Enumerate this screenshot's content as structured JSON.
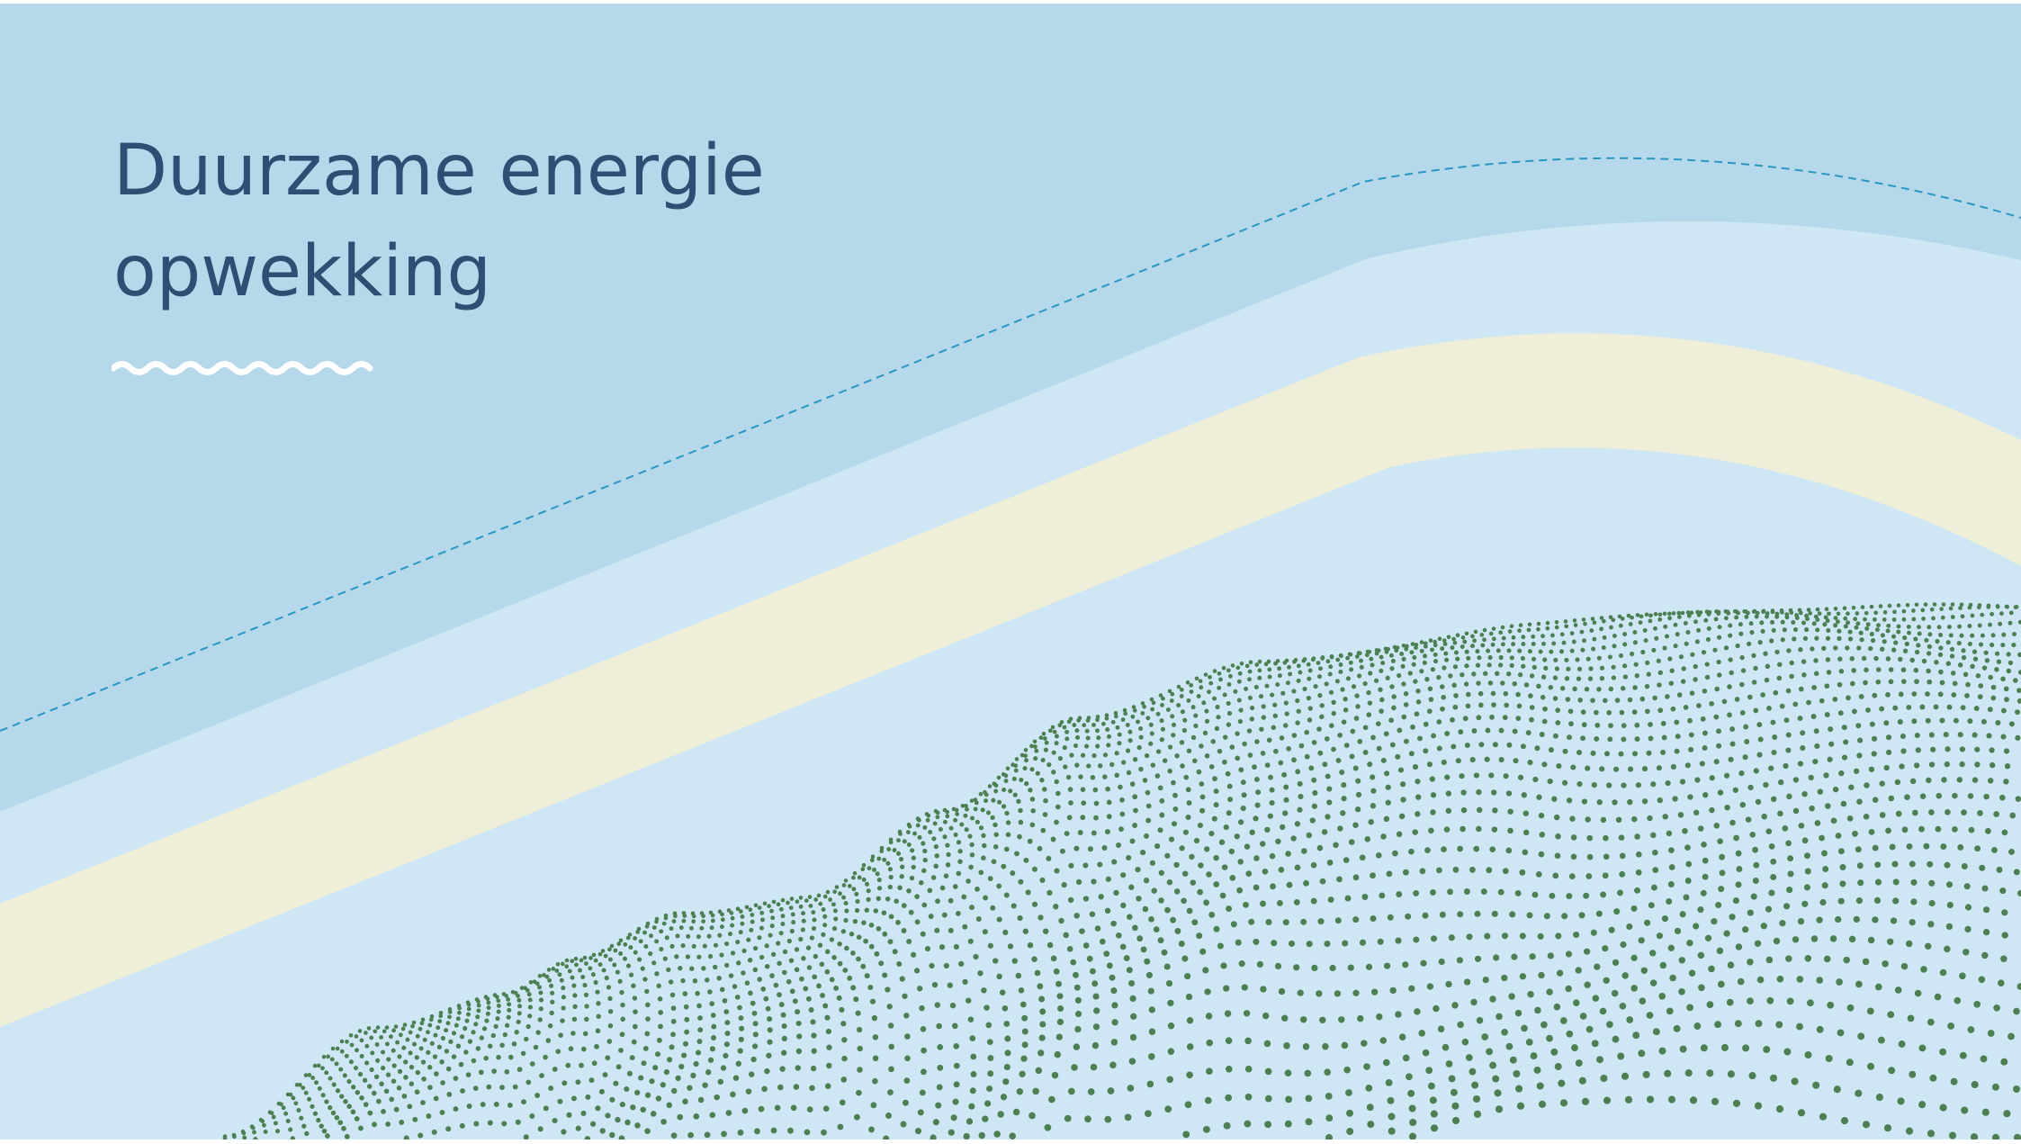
{
  "slide": {
    "title_line_1": "Duurzame energie",
    "title_line_2": "opwekking"
  },
  "decoration": {
    "wave_icon": "wavy-line-icon",
    "colors": {
      "background": "#b5d9ea",
      "light_band": "#cfe7f4",
      "cream_band": "#eeeed9",
      "dashed_line": "#2a97c2",
      "dots": "#4c7f52",
      "title_text": "#2e4e74",
      "wave": "#ffffff"
    }
  }
}
